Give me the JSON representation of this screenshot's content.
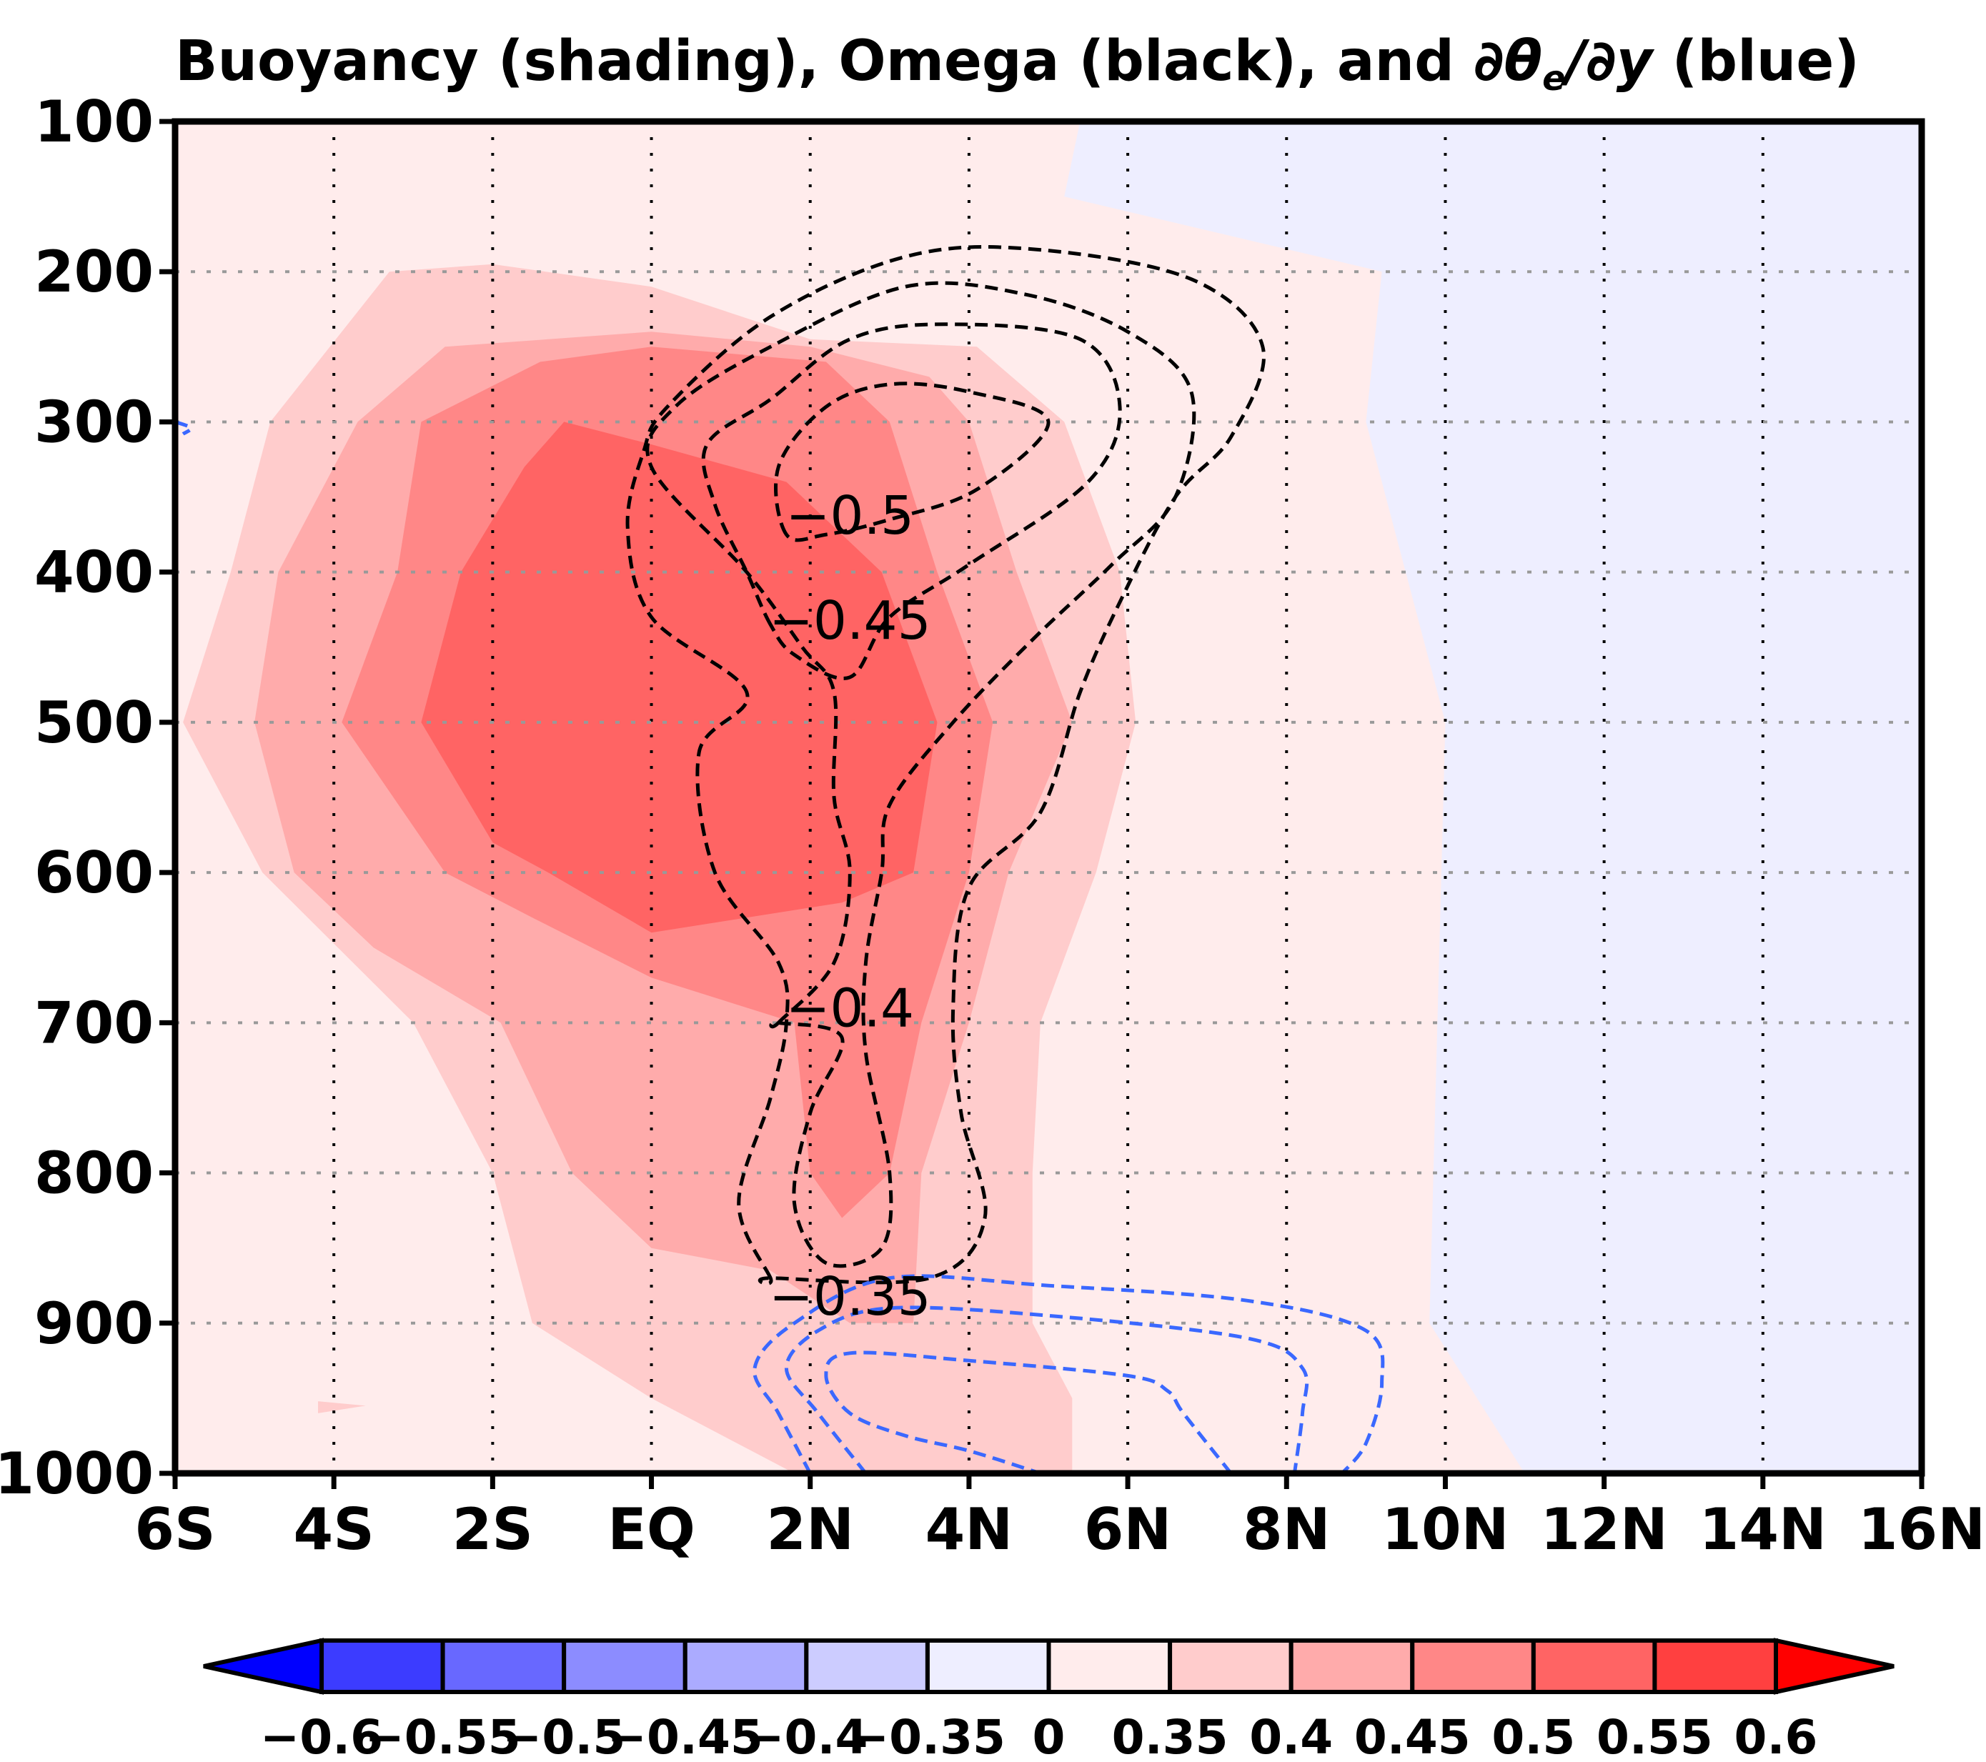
{
  "chart_data": {
    "type": "contour",
    "title_parts": {
      "prefix": "Buoyancy (shading), Omega (black), and ",
      "derivative": "∂θ",
      "subscript": "e",
      "suffix_deriv": "/∂y",
      "suffix": " (blue)"
    },
    "x_ticks": [
      "6S",
      "4S",
      "2S",
      "EQ",
      "2N",
      "4N",
      "6N",
      "8N",
      "10N",
      "12N",
      "14N",
      "16N"
    ],
    "x_values": [
      -6,
      -4,
      -2,
      0,
      2,
      4,
      6,
      8,
      10,
      12,
      14,
      16
    ],
    "xlim": [
      -6,
      16
    ],
    "y_ticks": [
      "100",
      "200",
      "300",
      "400",
      "500",
      "600",
      "700",
      "800",
      "900",
      "1000"
    ],
    "y_values": [
      100,
      200,
      300,
      400,
      500,
      600,
      700,
      800,
      900,
      1000
    ],
    "ylim": [
      100,
      1000
    ],
    "y_reversed": true,
    "grid": "dotted",
    "buoyancy_shading": {
      "levels": [
        {
          "min": 0.0,
          "color": "#ffecec"
        },
        {
          "min": 0.35,
          "color": "#ffcccc"
        },
        {
          "min": 0.4,
          "color": "#ffabab"
        },
        {
          "min": 0.45,
          "color": "#ff8787"
        },
        {
          "min": 0.5,
          "color": "#ff6464"
        }
      ],
      "negative_color": "#eeeeff",
      "regions": [
        {
          "level": 0.0,
          "points": [
            [
              -6,
              100
            ],
            [
              5.4,
              100
            ],
            [
              5.2,
              150
            ],
            [
              9.2,
              200
            ],
            [
              9.0,
              300
            ],
            [
              10.0,
              500
            ],
            [
              9.8,
              900
            ],
            [
              11.0,
              1000
            ],
            [
              -6,
              1000
            ]
          ]
        },
        {
          "level": 0.35,
          "points": [
            [
              -3.3,
              200
            ],
            [
              -2,
              195
            ],
            [
              0,
              210
            ],
            [
              2,
              245
            ],
            [
              4.1,
              250
            ],
            [
              5.2,
              300
            ],
            [
              5.9,
              400
            ],
            [
              6.1,
              500
            ],
            [
              5.6,
              600
            ],
            [
              4.9,
              700
            ],
            [
              4.8,
              800
            ],
            [
              4.8,
              900
            ],
            [
              5.3,
              950
            ],
            [
              5.3,
              1000
            ],
            [
              1.8,
              1000
            ],
            [
              0,
              950
            ],
            [
              -1.5,
              900
            ],
            [
              -2.0,
              800
            ],
            [
              -3.0,
              700
            ],
            [
              -4.9,
              600
            ],
            [
              -5.9,
              500
            ],
            [
              -5.3,
              400
            ],
            [
              -4.8,
              300
            ]
          ]
        },
        {
          "level": 0.4,
          "points": [
            [
              -2.6,
              250
            ],
            [
              0,
              240
            ],
            [
              2,
              250
            ],
            [
              3.5,
              270
            ],
            [
              4.0,
              300
            ],
            [
              4.6,
              400
            ],
            [
              5.3,
              500
            ],
            [
              4.5,
              600
            ],
            [
              4.0,
              700
            ],
            [
              3.4,
              800
            ],
            [
              3.3,
              900
            ],
            [
              2.5,
              900
            ],
            [
              1.5,
              865
            ],
            [
              0,
              850
            ],
            [
              -1,
              800
            ],
            [
              -1.9,
              700
            ],
            [
              -3.5,
              650
            ],
            [
              -4.5,
              600
            ],
            [
              -5.0,
              500
            ],
            [
              -4.7,
              400
            ],
            [
              -3.7,
              300
            ]
          ]
        },
        {
          "level": 0.45,
          "points": [
            [
              -1.4,
              260
            ],
            [
              0,
              250
            ],
            [
              2.2,
              260
            ],
            [
              3.0,
              300
            ],
            [
              3.6,
              400
            ],
            [
              4.3,
              500
            ],
            [
              4.0,
              600
            ],
            [
              3.4,
              700
            ],
            [
              3.0,
              800
            ],
            [
              2.4,
              830
            ],
            [
              2.0,
              800
            ],
            [
              1.8,
              700
            ],
            [
              0,
              670
            ],
            [
              -1.5,
              630
            ],
            [
              -2.6,
              600
            ],
            [
              -3.9,
              500
            ],
            [
              -3.2,
              400
            ],
            [
              -2.9,
              300
            ]
          ]
        },
        {
          "level": 0.5,
          "points": [
            [
              -1.1,
              300
            ],
            [
              0,
              315
            ],
            [
              1.7,
              340
            ],
            [
              2.9,
              400
            ],
            [
              3.6,
              500
            ],
            [
              3.3,
              600
            ],
            [
              2.4,
              620
            ],
            [
              0,
              640
            ],
            [
              -1.3,
              600
            ],
            [
              -2.0,
              580
            ],
            [
              -2.9,
              500
            ],
            [
              -2.4,
              400
            ],
            [
              -1.6,
              330
            ]
          ]
        }
      ],
      "small_patches": [
        {
          "level": 0.35,
          "points": [
            [
              -4.2,
              952
            ],
            [
              -3.6,
              955
            ],
            [
              -4.2,
              960
            ]
          ]
        }
      ]
    },
    "omega_contours": {
      "color": "#000000",
      "style": "dashed",
      "levels": [
        -0.5,
        -0.45,
        -0.4,
        -0.35
      ],
      "lines": [
        {
          "level": -0.5,
          "points": [
            [
              1.7,
              375
            ],
            [
              1.6,
              330
            ],
            [
              2.2,
              290
            ],
            [
              3,
              275
            ],
            [
              4.0,
              280
            ],
            [
              5.0,
              300
            ],
            [
              4.1,
              345
            ],
            [
              3.0,
              365
            ],
            [
              2.2,
              375
            ]
          ]
        },
        {
          "level": -0.45,
          "points": [
            [
              1.5,
              435
            ],
            [
              1.2,
              400
            ],
            [
              0.8,
              355
            ],
            [
              0.7,
              315
            ],
            [
              1.5,
              285
            ],
            [
              2.5,
              245
            ],
            [
              3.7,
              235
            ],
            [
              5.4,
              245
            ],
            [
              5.9,
              290
            ],
            [
              5.5,
              340
            ],
            [
              4.0,
              395
            ],
            [
              3.0,
              430
            ],
            [
              2.5,
              470
            ],
            [
              1.8,
              455
            ]
          ]
        },
        {
          "level": -0.4,
          "points": [
            [
              1.6,
              700
            ],
            [
              2.3,
              660
            ],
            [
              2.5,
              600
            ],
            [
              2.3,
              550
            ],
            [
              2.3,
              480
            ],
            [
              1.9,
              450
            ],
            [
              1.2,
              400
            ],
            [
              0.0,
              330
            ],
            [
              0.3,
              290
            ],
            [
              1.5,
              250
            ],
            [
              3.2,
              210
            ],
            [
              4.7,
              215
            ],
            [
              6.0,
              240
            ],
            [
              6.8,
              280
            ],
            [
              6.6,
              350
            ],
            [
              5.8,
              395
            ],
            [
              4.8,
              445
            ],
            [
              3.8,
              500
            ],
            [
              3.0,
              555
            ],
            [
              2.9,
              600
            ],
            [
              2.7,
              660
            ],
            [
              2.7,
              720
            ],
            [
              3.0,
              800
            ],
            [
              2.9,
              850
            ],
            [
              2.2,
              860
            ],
            [
              1.8,
              820
            ],
            [
              2.0,
              760
            ],
            [
              2.4,
              710
            ],
            [
              1.6,
              700
            ]
          ]
        },
        {
          "level": -0.35,
          "points": [
            [
              1.5,
              870
            ],
            [
              1.1,
              820
            ],
            [
              1.5,
              750
            ],
            [
              1.7,
              700
            ],
            [
              1.6,
              660
            ],
            [
              0.8,
              600
            ],
            [
              0.6,
              520
            ],
            [
              1.2,
              480
            ],
            [
              0.0,
              430
            ],
            [
              -0.3,
              370
            ],
            [
              -0.1,
              320
            ],
            [
              0.2,
              290
            ],
            [
              1.5,
              230
            ],
            [
              3.2,
              190
            ],
            [
              4.8,
              185
            ],
            [
              6.8,
              205
            ],
            [
              7.7,
              250
            ],
            [
              7.3,
              310
            ],
            [
              6.6,
              350
            ],
            [
              5.9,
              420
            ],
            [
              5.4,
              480
            ],
            [
              4.9,
              560
            ],
            [
              4.0,
              610
            ],
            [
              3.8,
              690
            ],
            [
              3.9,
              760
            ],
            [
              4.2,
              830
            ],
            [
              3.5,
              870
            ],
            [
              1.5,
              870
            ]
          ]
        }
      ],
      "labels": [
        {
          "text": "-0.5",
          "x": 2.5,
          "y": 362
        },
        {
          "text": "-0.45",
          "x": 2.5,
          "y": 432
        },
        {
          "text": "-0.4",
          "x": 2.5,
          "y": 690
        },
        {
          "text": "-0.35",
          "x": 2.5,
          "y": 882
        }
      ]
    },
    "dthetae_dy_contours": {
      "color": "#3a68ff",
      "style": "dashed",
      "lines": [
        {
          "points": [
            [
              2.0,
              1000
            ],
            [
              1.6,
              960
            ],
            [
              1.3,
              930
            ],
            [
              1.8,
              900
            ],
            [
              3.0,
              870
            ],
            [
              5.0,
              875
            ],
            [
              7.5,
              885
            ],
            [
              9.0,
              905
            ],
            [
              9.2,
              940
            ],
            [
              9.0,
              980
            ],
            [
              8.7,
              1000
            ]
          ]
        },
        {
          "points": [
            [
              2.7,
              1000
            ],
            [
              2.1,
              960
            ],
            [
              1.7,
              930
            ],
            [
              2.1,
              905
            ],
            [
              3.0,
              890
            ],
            [
              5.0,
              895
            ],
            [
              7.5,
              910
            ],
            [
              8.2,
              930
            ],
            [
              8.2,
              960
            ],
            [
              8.1,
              1000
            ]
          ]
        },
        {
          "points": [
            [
              7.3,
              1000
            ],
            [
              6.7,
              960
            ],
            [
              6.5,
              945
            ],
            [
              6.0,
              935
            ],
            [
              4.0,
              925
            ],
            [
              2.5,
              920
            ],
            [
              2.2,
              935
            ],
            [
              2.5,
              960
            ],
            [
              3.2,
              975
            ],
            [
              4.0,
              985
            ],
            [
              4.9,
              1000
            ]
          ]
        },
        {
          "points": [
            [
              -6.0,
              300
            ],
            [
              -5.8,
              304
            ],
            [
              -5.9,
              308
            ]
          ]
        }
      ]
    },
    "colorbar": {
      "tick_labels": [
        "-0.6",
        "-0.55",
        "-0.5",
        "-0.45",
        "-0.4",
        "-0.35",
        "0",
        "0.35",
        "0.4",
        "0.45",
        "0.5",
        "0.55",
        "0.6"
      ],
      "colors": [
        "#0000ff",
        "#3c3cff",
        "#6868ff",
        "#8c8cff",
        "#ababff",
        "#ccccff",
        "#eeeeff",
        "#ffecec",
        "#ffcccc",
        "#ffabab",
        "#ff8787",
        "#ff6464",
        "#ff4040",
        "#ff0000"
      ]
    }
  }
}
